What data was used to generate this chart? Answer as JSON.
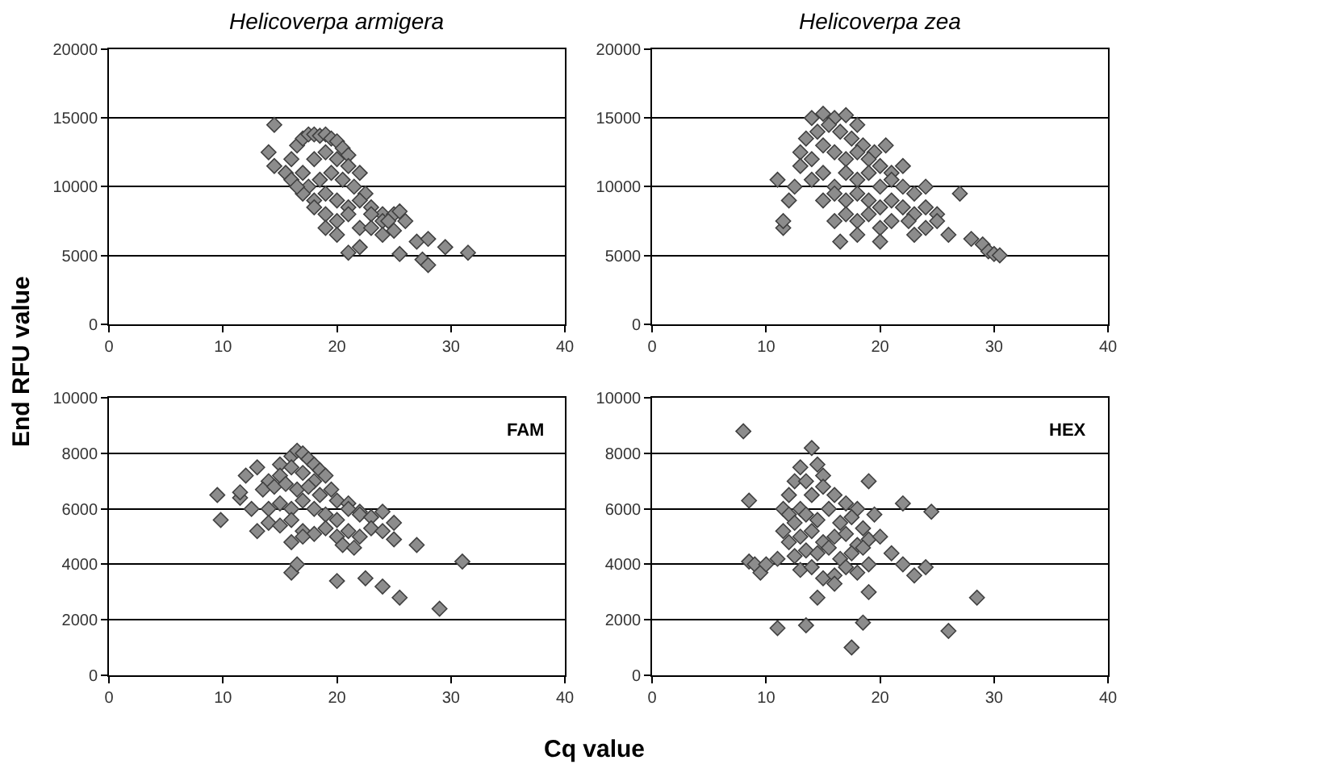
{
  "chart_data": [
    {
      "type": "scatter",
      "title": "Helicoverpa armigera",
      "ylabel": "End RFU value",
      "xlim": [
        0,
        40
      ],
      "xticks": [
        0,
        10,
        20,
        30,
        40
      ],
      "ylim": [
        0,
        20000
      ],
      "yticks": [
        0,
        5000,
        10000,
        15000,
        20000
      ],
      "grid": "y",
      "marker": "diamond",
      "series": [
        {
          "color": "#8c8c8c",
          "x": [
            14.5,
            14,
            14.5,
            16,
            15.5,
            16.5,
            17,
            17.5,
            18,
            18.5,
            19,
            19.5,
            20,
            20.5,
            21,
            16,
            17,
            18,
            19,
            20,
            21,
            22,
            17.5,
            18.5,
            19.5,
            20.5,
            21.5,
            22.5,
            23,
            24,
            18,
            19,
            20,
            21,
            22,
            23,
            24,
            25,
            17,
            18,
            19,
            20,
            21,
            22,
            23,
            24.5,
            25.5,
            26,
            25,
            24,
            27,
            28,
            27.5,
            28,
            29.5,
            31.5,
            25.5,
            21,
            22,
            20,
            19,
            16.5
          ],
          "values": [
            14500,
            12500,
            11500,
            12000,
            11000,
            13000,
            13500,
            13800,
            13800,
            13700,
            13800,
            13500,
            13300,
            12800,
            12300,
            10500,
            11000,
            12000,
            12500,
            12000,
            11500,
            11000,
            10000,
            10500,
            11000,
            10500,
            10000,
            9500,
            8500,
            8000,
            9000,
            9500,
            9000,
            8500,
            9000,
            8000,
            7500,
            8000,
            9500,
            8500,
            8000,
            7500,
            8000,
            7000,
            7000,
            7500,
            8200,
            7500,
            6800,
            6500,
            6000,
            6200,
            4700,
            4300,
            5600,
            5200,
            5100,
            5200,
            5600,
            6500,
            7000,
            10000
          ]
        }
      ]
    },
    {
      "type": "scatter",
      "title": "Helicoverpa zea",
      "xlim": [
        0,
        40
      ],
      "xticks": [
        0,
        10,
        20,
        30,
        40
      ],
      "ylim": [
        0,
        20000
      ],
      "yticks": [
        0,
        5000,
        10000,
        15000,
        20000
      ],
      "grid": "y",
      "marker": "diamond",
      "series": [
        {
          "color": "#8c8c8c",
          "x": [
            11.5,
            11.5,
            12,
            11,
            12.5,
            13,
            13.5,
            14,
            15,
            16,
            17,
            18,
            14.5,
            15.5,
            16.5,
            17.5,
            18.5,
            19.5,
            20.5,
            13,
            14,
            15,
            16,
            17,
            18,
            19,
            20,
            21,
            22,
            14,
            15,
            16,
            17,
            18,
            19,
            20,
            21,
            22,
            23,
            24,
            15,
            16,
            17,
            18,
            19,
            20,
            21,
            22,
            23,
            24,
            25,
            16,
            17,
            18,
            19,
            20,
            21,
            22.5,
            24,
            25,
            27,
            28,
            29,
            29.5,
            30,
            30.5,
            26,
            23,
            20,
            18,
            16.5
          ],
          "values": [
            7000,
            7500,
            9000,
            10500,
            10000,
            12500,
            13500,
            15000,
            15300,
            15000,
            15200,
            14500,
            14000,
            14500,
            14000,
            13500,
            13000,
            12500,
            13000,
            11500,
            12000,
            13000,
            12500,
            12000,
            12500,
            12000,
            11500,
            11000,
            11500,
            10500,
            11000,
            10000,
            11000,
            10500,
            11000,
            10000,
            10500,
            10000,
            9500,
            10000,
            9000,
            9500,
            9000,
            9500,
            9000,
            8500,
            9000,
            8500,
            8000,
            8500,
            8000,
            7500,
            8000,
            7500,
            8000,
            7000,
            7500,
            7500,
            7000,
            7500,
            9500,
            6200,
            5800,
            5300,
            5100,
            5000,
            6500,
            6500,
            6000,
            6500,
            6000
          ]
        }
      ]
    },
    {
      "type": "scatter",
      "xlabel": "Cq value",
      "xlim": [
        0,
        40
      ],
      "xticks": [
        0,
        10,
        20,
        30,
        40
      ],
      "ylim": [
        0,
        10000
      ],
      "yticks": [
        0,
        2000,
        4000,
        6000,
        8000,
        10000
      ],
      "grid": "y",
      "marker": "diamond",
      "annotations": [
        "FAM"
      ],
      "series": [
        {
          "color": "#8c8c8c",
          "x": [
            9.5,
            9.8,
            11.5,
            11.5,
            12,
            13,
            12.5,
            14,
            15,
            16,
            16.5,
            17,
            17.5,
            18,
            18.5,
            15,
            16,
            17,
            18,
            19,
            19.5,
            13.5,
            14.5,
            15.5,
            16.5,
            17.5,
            18.5,
            20,
            21,
            22,
            13,
            14,
            15,
            16,
            17,
            18,
            19,
            20,
            21,
            22,
            23,
            24,
            14,
            15,
            16,
            17,
            18,
            19,
            20,
            21,
            22,
            23,
            24,
            25,
            16,
            17,
            20.5,
            21.5,
            25,
            27,
            29,
            31,
            25.5,
            24,
            22.5,
            20,
            16,
            16.5
          ],
          "values": [
            6500,
            5600,
            6400,
            6600,
            7200,
            7500,
            6000,
            7000,
            7600,
            7900,
            8100,
            8000,
            7800,
            7600,
            7400,
            7200,
            7500,
            7300,
            7000,
            7200,
            6700,
            6700,
            6800,
            6900,
            6700,
            6800,
            6500,
            6300,
            6200,
            5900,
            5200,
            6000,
            6200,
            6000,
            6300,
            6000,
            5800,
            5600,
            6000,
            5800,
            5700,
            5900,
            5500,
            5400,
            5600,
            5200,
            5100,
            5300,
            5000,
            5200,
            5000,
            5300,
            5200,
            5500,
            4800,
            5000,
            4700,
            4600,
            4900,
            4700,
            2400,
            4100,
            2800,
            3200,
            3500,
            3400,
            3700,
            4000
          ]
        }
      ]
    },
    {
      "type": "scatter",
      "xlim": [
        0,
        40
      ],
      "xticks": [
        0,
        10,
        20,
        30,
        40
      ],
      "ylim": [
        0,
        10000
      ],
      "yticks": [
        0,
        2000,
        4000,
        6000,
        8000,
        10000
      ],
      "grid": "y",
      "marker": "diamond",
      "annotations": [
        "HEX"
      ],
      "series": [
        {
          "color": "#8c8c8c",
          "x": [
            8,
            8.5,
            8.5,
            9,
            9.5,
            10,
            11,
            11.5,
            12,
            12.5,
            13,
            13.5,
            14,
            14.5,
            15,
            12,
            13,
            14,
            15,
            16,
            17,
            18,
            19,
            11.5,
            12.5,
            13.5,
            14.5,
            15.5,
            16.5,
            17.5,
            18.5,
            19.5,
            12,
            13,
            14,
            15,
            16,
            17,
            18,
            19,
            20,
            12.5,
            13.5,
            14.5,
            15.5,
            16.5,
            17.5,
            18.5,
            13,
            14,
            15,
            16,
            17,
            18,
            19,
            21,
            22,
            23,
            24,
            24.5,
            22,
            13.5,
            17.5,
            18.5,
            26,
            28.5,
            11,
            19,
            16,
            14.5
          ],
          "values": [
            8800,
            6300,
            4100,
            4000,
            3700,
            4000,
            4200,
            6000,
            6500,
            7000,
            7500,
            7000,
            8200,
            7600,
            7200,
            5800,
            6000,
            6500,
            6800,
            6500,
            6200,
            6000,
            7000,
            5200,
            5500,
            5800,
            5600,
            6000,
            5500,
            5700,
            5300,
            5800,
            4800,
            5000,
            5200,
            4800,
            5000,
            5100,
            4700,
            4900,
            5000,
            4300,
            4500,
            4400,
            4600,
            4200,
            4400,
            4600,
            3800,
            3900,
            3500,
            3600,
            3900,
            3700,
            4000,
            4400,
            4000,
            3600,
            3900,
            5900,
            6200,
            1800,
            1000,
            1900,
            1600,
            2800,
            1700,
            3000,
            3300,
            2800
          ]
        }
      ]
    }
  ]
}
